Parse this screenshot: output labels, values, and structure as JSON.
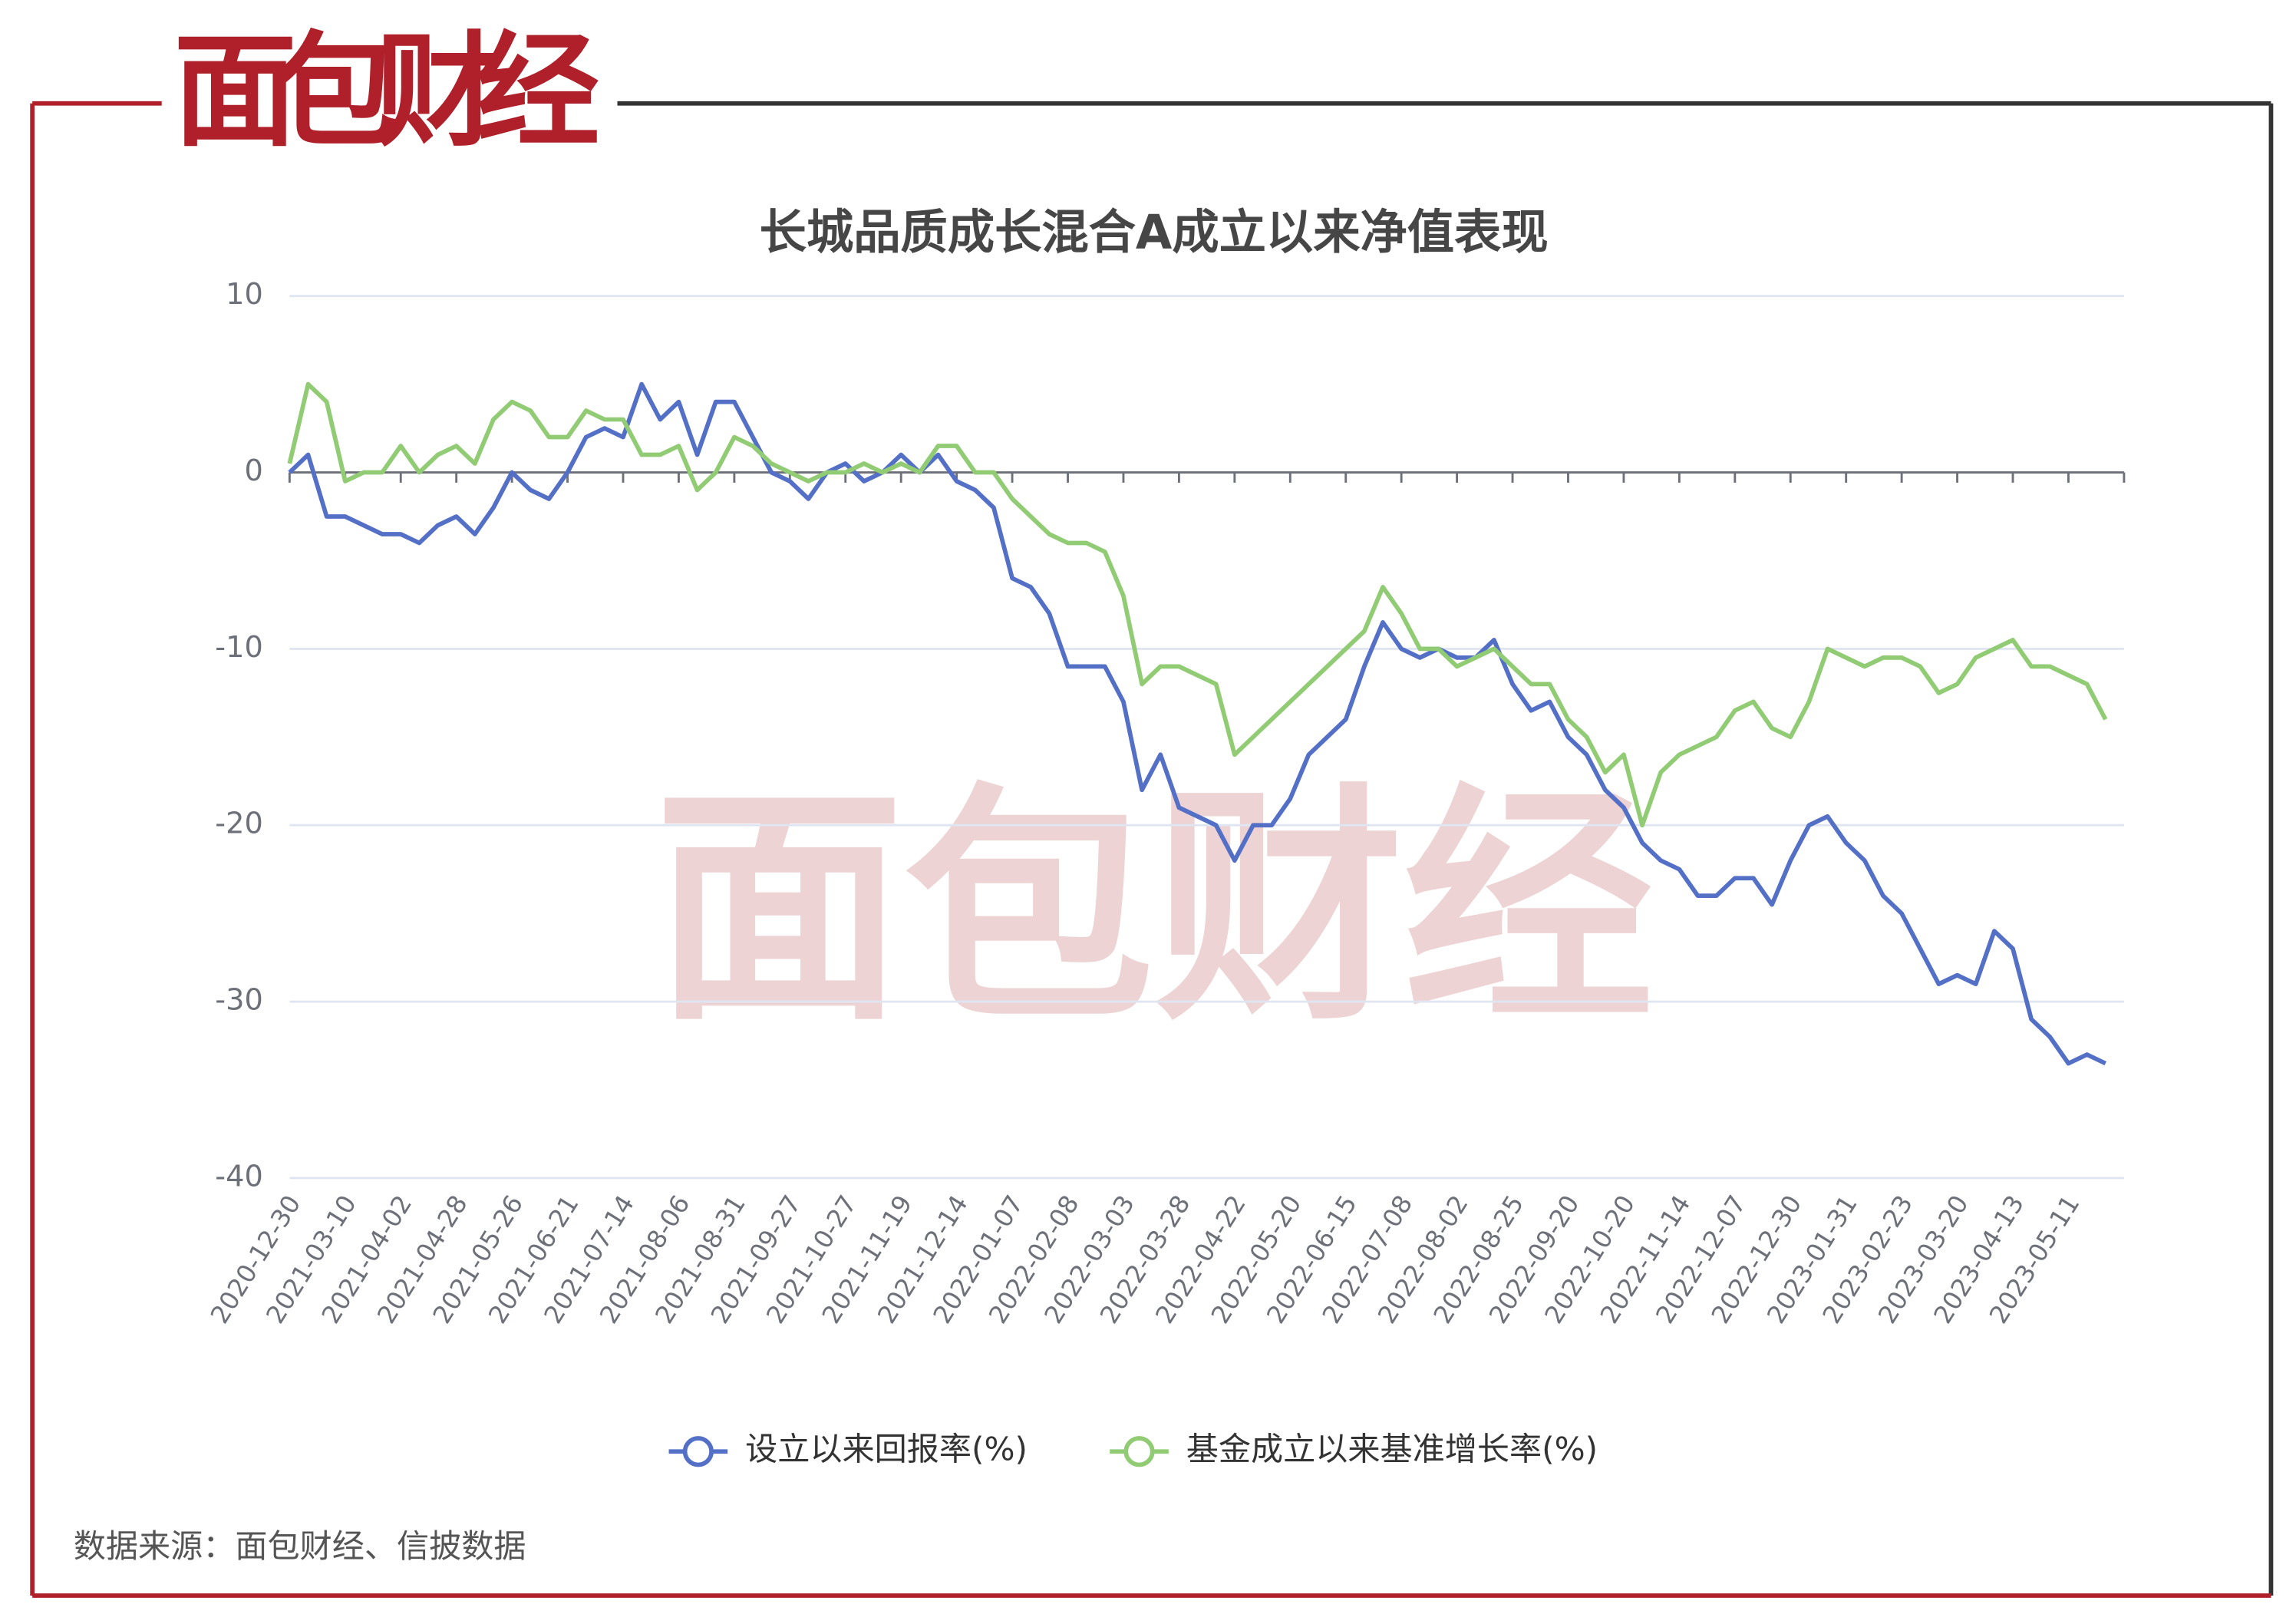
{
  "logo": "面包财经",
  "source": "数据来源：面包财经、信披数据",
  "chart_data": {
    "type": "line",
    "title": "长城品质成长混合A成立以来净值表现",
    "categories": [
      "2020-12-30",
      null,
      null,
      "2021-03-10",
      null,
      null,
      "2021-04-02",
      null,
      null,
      "2021-04-28",
      null,
      null,
      "2021-05-26",
      null,
      null,
      "2021-06-21",
      null,
      null,
      "2021-07-14",
      null,
      null,
      "2021-08-06",
      null,
      null,
      "2021-08-31",
      null,
      null,
      "2021-09-27",
      null,
      null,
      "2021-10-27",
      null,
      null,
      "2021-11-19",
      null,
      null,
      "2021-12-14",
      null,
      null,
      "2022-01-07",
      null,
      null,
      "2022-02-08",
      null,
      null,
      "2022-03-03",
      null,
      null,
      "2022-03-28",
      null,
      null,
      "2022-04-22",
      null,
      null,
      "2022-05-20",
      null,
      null,
      "2022-06-15",
      null,
      null,
      "2022-07-08",
      null,
      null,
      "2022-08-02",
      null,
      null,
      "2022-08-25",
      null,
      null,
      "2022-09-20",
      null,
      null,
      "2022-10-20",
      null,
      null,
      "2022-11-14",
      null,
      null,
      "2022-12-07",
      null,
      null,
      "2022-12-30",
      null,
      null,
      "2023-01-31",
      null,
      null,
      "2023-02-23",
      null,
      null,
      "2023-03-20",
      null,
      null,
      "2023-04-13",
      null,
      null,
      "2023-05-11",
      null,
      null
    ],
    "series": [
      {
        "name": "设立以来回报率(%)",
        "color": "#5470c6",
        "values": [
          0,
          1,
          -2.5,
          -2.5,
          -3,
          -3.5,
          -3.5,
          -4,
          -3,
          -2.5,
          -3.5,
          -2,
          0,
          -1,
          -1.5,
          0,
          2,
          2.5,
          2,
          5,
          3,
          4,
          1,
          4,
          4,
          2,
          0,
          -0.5,
          -1.5,
          0,
          0.5,
          -0.5,
          0,
          1,
          0,
          1,
          -0.5,
          -1,
          -2,
          -6,
          -6.5,
          -8,
          -11,
          -11,
          -11,
          -13,
          -18,
          -16,
          -19,
          -19.5,
          -20,
          -22,
          -20,
          -20,
          -18.5,
          -16,
          -15,
          -14,
          -11,
          -8.5,
          -10,
          -10.5,
          -10,
          -10.5,
          -10.5,
          -9.5,
          -12,
          -13.5,
          -13,
          -15,
          -16,
          -18,
          -19,
          -21,
          -22,
          -22.5,
          -24,
          -24,
          -23,
          -23,
          -24.5,
          -22,
          -20,
          -19.5,
          -21,
          -22,
          -24,
          -25,
          -27,
          -29,
          -28.5,
          -29,
          -26,
          -27,
          -31,
          -32,
          -33.5,
          -33,
          -33.5
        ]
      },
      {
        "name": "基金成立以来基准增长率(%)",
        "color": "#91cc75",
        "values": [
          0.5,
          5,
          4,
          -0.5,
          0,
          0,
          1.5,
          0,
          1,
          1.5,
          0.5,
          3,
          4,
          3.5,
          2,
          2,
          3.5,
          3,
          3,
          1,
          1,
          1.5,
          -1,
          0,
          2,
          1.5,
          0.5,
          0,
          -0.5,
          0,
          0,
          0.5,
          0,
          0.5,
          0,
          1.5,
          1.5,
          0,
          0,
          -1.5,
          -2.5,
          -3.5,
          -4,
          -4,
          -4.5,
          -7,
          -12,
          -11,
          -11,
          -11.5,
          -12,
          -16,
          -15,
          -14,
          -13,
          -12,
          -11,
          -10,
          -9,
          -6.5,
          -8,
          -10,
          -10,
          -11,
          -10.5,
          -10,
          -11,
          -12,
          -12,
          -14,
          -15,
          -17,
          -16,
          -20,
          -17,
          -16,
          -15.5,
          -15,
          -13.5,
          -13,
          -14.5,
          -15,
          -13,
          -10,
          -10.5,
          -11,
          -10.5,
          -10.5,
          -11,
          -12.5,
          -12,
          -10.5,
          -10,
          -9.5,
          -11,
          -11,
          -11.5,
          -12,
          -14
        ]
      }
    ],
    "ylim": [
      -40,
      10
    ],
    "yticks": [
      -40,
      -30,
      -20,
      -10,
      0,
      10
    ],
    "grid": true
  }
}
